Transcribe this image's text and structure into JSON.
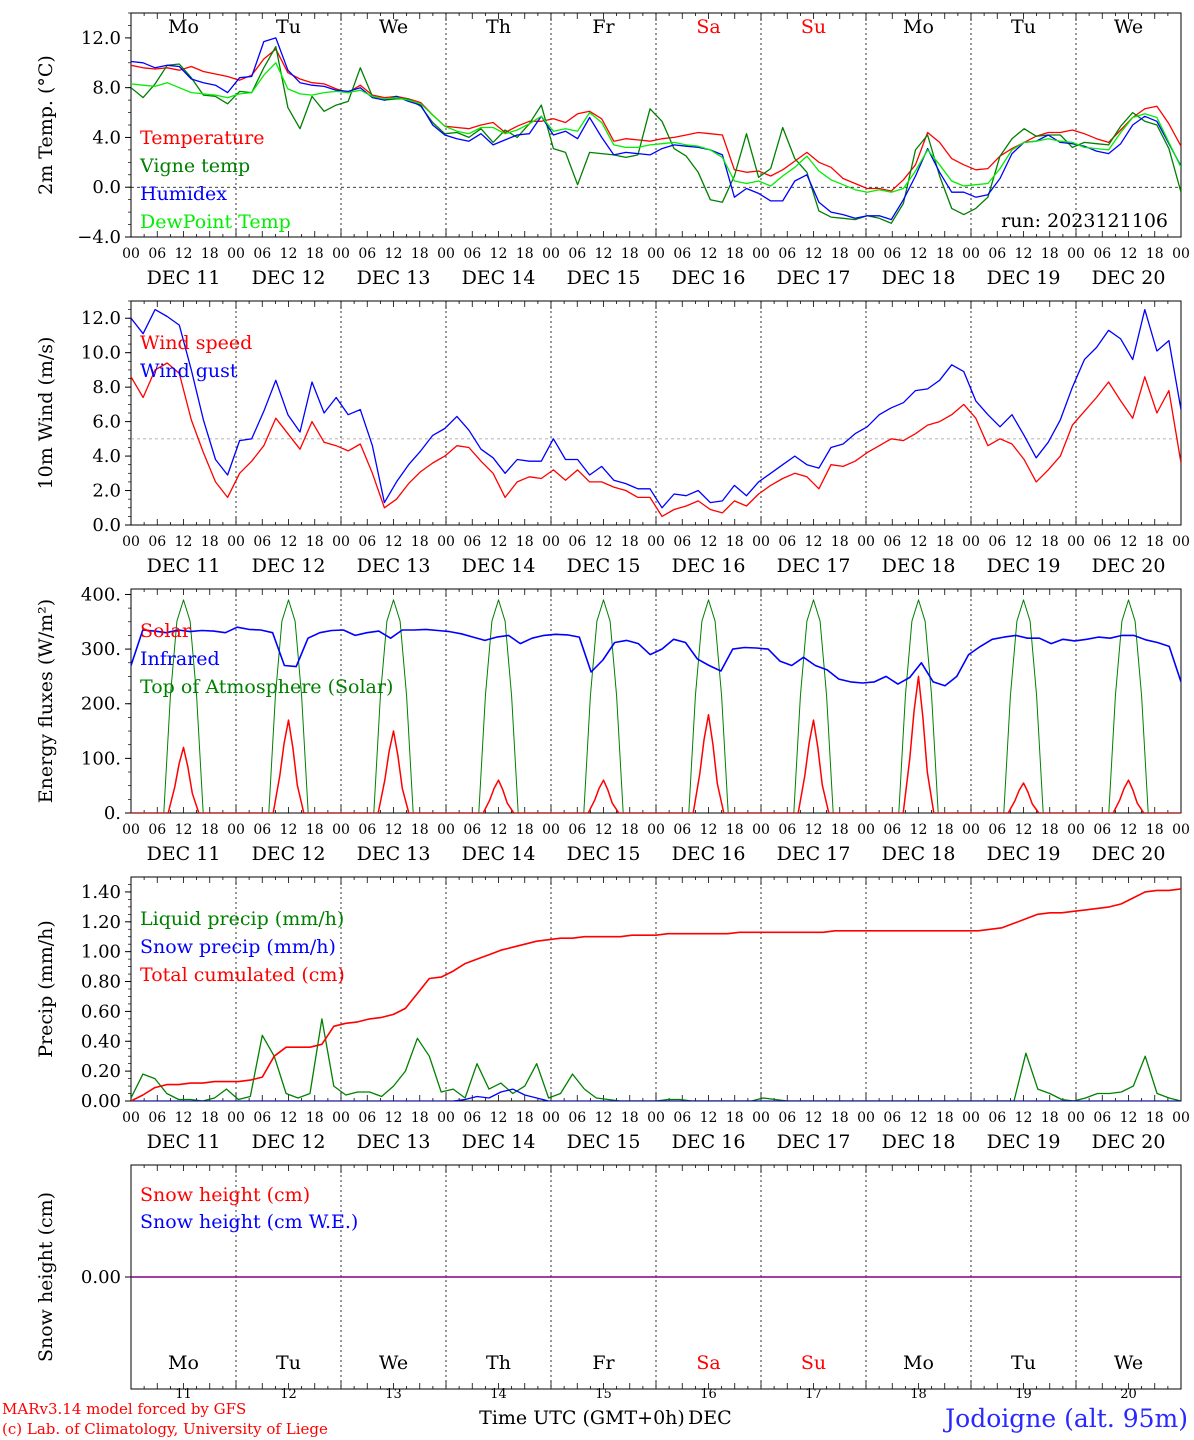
{
  "days": [
    "11",
    "12",
    "13",
    "14",
    "15",
    "16",
    "17",
    "18",
    "19",
    "20"
  ],
  "dayNames": [
    "Mo",
    "Tu",
    "We",
    "Th",
    "Fr",
    "Sa",
    "Su",
    "Mo",
    "Tu",
    "We"
  ],
  "dateLabels": [
    "DEC 11",
    "DEC 12",
    "DEC 13",
    "DEC 14",
    "DEC 15",
    "DEC 16",
    "DEC 17",
    "DEC 18",
    "DEC 19",
    "DEC 20"
  ],
  "hourLabels": [
    "00",
    "06",
    "12",
    "18"
  ],
  "finalHourLabel": "00",
  "colors": {
    "weekday": "#000000",
    "weekend": "#ff0000",
    "red": "#ff0000",
    "green": "#008000",
    "blue": "#0000ff",
    "lightgreen": "#00ee00",
    "purple": "#800080"
  },
  "footer": {
    "model": "MARv3.14 model forced by GFS",
    "credit": "(c) Lab. of Climatology, University of Liege",
    "xlabel": "Time UTC (GMT+0h)",
    "month": "DEC",
    "location": "Jodoigne (alt. 95m)"
  },
  "chart_data": [
    {
      "type": "line",
      "ylabel": "2m Temp. (°C)",
      "ylim": [
        -4,
        14
      ],
      "yticks": [
        "12.0",
        "8.0",
        "4.0",
        "0.0",
        "−4.0"
      ],
      "ytick_values": [
        12,
        8,
        4,
        0,
        -4
      ],
      "reference_line": 0,
      "annotation": "run: 2023121106",
      "x": "hours since DEC 11 00 UTC, 3-hourly 0..240",
      "series": [
        {
          "name": "Temperature",
          "color": "#ff0000",
          "values": [
            9.8,
            9.6,
            9.5,
            9.6,
            9.4,
            9.7,
            9.3,
            9.1,
            8.9,
            8.6,
            9.0,
            10.3,
            11.1,
            9.2,
            8.7,
            8.4,
            8.3,
            7.9,
            7.6,
            8.2,
            7.4,
            7.2,
            7.3,
            7.1,
            6.8,
            5.8,
            4.9,
            4.8,
            4.7,
            5.0,
            5.2,
            4.4,
            4.9,
            5.3,
            5.3,
            5.5,
            5.2,
            5.9,
            6.1,
            5.5,
            3.7,
            3.9,
            3.8,
            3.7,
            3.9,
            4.0,
            4.2,
            4.4,
            4.3,
            4.2,
            1.4,
            1.2,
            1.3,
            0.9,
            1.4,
            2.1,
            2.8,
            2.0,
            1.6,
            0.7,
            0.3,
            -0.1,
            -0.1,
            -0.3,
            0.6,
            1.8,
            4.4,
            3.6,
            2.3,
            1.8,
            1.4,
            1.5,
            2.5,
            3.1,
            3.6,
            4.1,
            4.4,
            4.4,
            4.6,
            4.3,
            3.9,
            3.6,
            4.6,
            5.6,
            6.3,
            6.5,
            5.1,
            3.3
          ]
        },
        {
          "name": "Vigne temp",
          "color": "#008000",
          "values": [
            8.0,
            7.2,
            8.3,
            9.8,
            9.9,
            8.8,
            7.4,
            7.3,
            6.7,
            7.7,
            7.6,
            9.6,
            11.3,
            6.4,
            4.7,
            7.3,
            6.1,
            6.6,
            6.9,
            9.6,
            7.3,
            7.0,
            7.1,
            7.1,
            6.5,
            5.2,
            4.3,
            4.4,
            4.0,
            4.7,
            3.6,
            4.6,
            4.0,
            5.1,
            6.6,
            3.1,
            2.8,
            0.2,
            2.8,
            2.7,
            2.6,
            2.4,
            2.6,
            6.3,
            5.3,
            3.1,
            2.5,
            1.2,
            -1.0,
            -1.2,
            0.9,
            4.3,
            0.8,
            1.5,
            4.8,
            2.3,
            1.2,
            -1.9,
            -2.4,
            -2.5,
            -2.6,
            -2.3,
            -2.5,
            -2.9,
            -1.3,
            3.0,
            4.2,
            0.9,
            -1.7,
            -2.2,
            -1.7,
            -0.8,
            2.5,
            3.9,
            4.7,
            4.1,
            4.2,
            4.2,
            3.2,
            3.6,
            3.5,
            3.4,
            4.9,
            6.0,
            5.3,
            5.0,
            3.1,
            -0.4
          ]
        },
        {
          "name": "Humidex",
          "color": "#0000ff",
          "values": [
            10.1,
            10.0,
            9.6,
            9.8,
            9.7,
            8.7,
            8.4,
            8.2,
            7.6,
            8.8,
            8.9,
            11.7,
            12.0,
            9.4,
            8.4,
            8.2,
            8.1,
            7.8,
            7.7,
            8.0,
            7.2,
            7.0,
            7.3,
            6.9,
            6.6,
            5.0,
            4.2,
            3.9,
            3.7,
            4.3,
            3.4,
            3.8,
            4.2,
            4.3,
            5.7,
            4.2,
            4.5,
            3.9,
            5.6,
            4.0,
            2.6,
            2.8,
            2.7,
            2.6,
            3.1,
            3.4,
            3.3,
            3.2,
            3.0,
            2.6,
            -0.8,
            -0.1,
            -0.5,
            -1.1,
            -1.1,
            0.5,
            1.0,
            -1.2,
            -2.0,
            -2.2,
            -2.5,
            -2.3,
            -2.3,
            -2.6,
            -1.0,
            0.9,
            3.1,
            1.2,
            -0.4,
            -0.4,
            -0.8,
            -0.6,
            0.7,
            2.7,
            3.6,
            3.7,
            4.2,
            3.6,
            3.5,
            3.3,
            2.9,
            2.7,
            3.5,
            5.0,
            5.7,
            5.3,
            3.5,
            1.7
          ]
        },
        {
          "name": "DewPoint Temp",
          "color": "#00ee00",
          "values": [
            8.3,
            8.2,
            8.1,
            8.4,
            8.0,
            7.6,
            7.5,
            7.4,
            7.2,
            7.5,
            7.6,
            9.0,
            10.0,
            7.9,
            7.5,
            7.4,
            7.6,
            7.7,
            7.6,
            7.8,
            7.3,
            7.1,
            7.2,
            7.0,
            6.7,
            5.8,
            4.9,
            4.5,
            4.3,
            4.8,
            4.8,
            4.3,
            4.6,
            5.1,
            5.7,
            4.5,
            4.7,
            4.5,
            6.0,
            5.2,
            3.4,
            3.2,
            3.2,
            3.4,
            3.5,
            3.6,
            3.4,
            3.3,
            3.0,
            2.4,
            0.5,
            0.3,
            0.5,
            0.1,
            0.9,
            1.6,
            2.5,
            1.3,
            0.6,
            0.2,
            -0.2,
            -0.4,
            -0.2,
            -0.4,
            -0.1,
            1.3,
            3.0,
            1.8,
            0.5,
            0.1,
            0.2,
            0.3,
            1.5,
            3.0,
            3.6,
            3.7,
            3.9,
            3.7,
            3.6,
            3.2,
            3.1,
            3.0,
            4.4,
            5.6,
            5.9,
            5.6,
            3.6,
            1.6
          ]
        }
      ]
    },
    {
      "type": "line",
      "ylabel": "10m Wind (m/s)",
      "ylim": [
        0,
        13
      ],
      "yticks": [
        "12.0",
        "10.0",
        "8.0",
        "6.0",
        "4.0",
        "2.0",
        "0.0"
      ],
      "ytick_values": [
        12,
        10,
        8,
        6,
        4,
        2,
        0
      ],
      "reference_line": 5,
      "series": [
        {
          "name": "Wind speed",
          "color": "#ff0000",
          "values": [
            8.6,
            7.4,
            9.0,
            9.4,
            8.8,
            6.1,
            4.2,
            2.5,
            1.6,
            3.0,
            3.7,
            4.6,
            6.2,
            5.3,
            4.4,
            6.0,
            4.8,
            4.6,
            4.3,
            4.7,
            3.0,
            1.0,
            1.5,
            2.4,
            3.1,
            3.6,
            4.0,
            4.6,
            4.5,
            3.7,
            3.0,
            1.6,
            2.5,
            2.8,
            2.7,
            3.2,
            2.6,
            3.2,
            2.5,
            2.5,
            2.2,
            2.0,
            1.6,
            1.6,
            0.5,
            0.9,
            1.1,
            1.4,
            0.9,
            0.7,
            1.4,
            1.1,
            1.8,
            2.3,
            2.7,
            3.0,
            2.8,
            2.1,
            3.5,
            3.4,
            3.7,
            4.2,
            4.6,
            5.0,
            4.9,
            5.3,
            5.8,
            6.0,
            6.4,
            7.0,
            6.2,
            4.6,
            5.0,
            4.7,
            3.8,
            2.5,
            3.2,
            4.0,
            5.8,
            6.6,
            7.4,
            8.3,
            7.2,
            6.2,
            8.6,
            6.5,
            7.8,
            3.6
          ]
        },
        {
          "name": "Wind gust",
          "color": "#0000ff",
          "values": [
            12.0,
            11.1,
            12.5,
            12.1,
            11.6,
            9.0,
            6.1,
            3.8,
            2.9,
            4.9,
            5.0,
            6.6,
            8.4,
            6.4,
            5.4,
            8.3,
            6.5,
            7.4,
            6.4,
            6.7,
            4.6,
            1.3,
            2.5,
            3.5,
            4.3,
            5.2,
            5.6,
            6.3,
            5.5,
            4.4,
            3.9,
            3.0,
            3.8,
            3.7,
            3.7,
            5.0,
            3.8,
            3.8,
            2.9,
            3.4,
            2.6,
            2.4,
            2.1,
            2.1,
            1.0,
            1.8,
            1.7,
            2.0,
            1.3,
            1.4,
            2.3,
            1.7,
            2.5,
            3.0,
            3.5,
            4.0,
            3.5,
            3.3,
            4.5,
            4.7,
            5.3,
            5.7,
            6.4,
            6.8,
            7.1,
            7.8,
            7.9,
            8.4,
            9.3,
            8.9,
            7.2,
            6.4,
            5.7,
            6.4,
            5.2,
            3.9,
            4.8,
            6.1,
            8.0,
            9.6,
            10.3,
            11.3,
            10.8,
            9.6,
            12.5,
            10.1,
            10.7,
            6.7
          ]
        }
      ]
    },
    {
      "type": "line",
      "ylabel": "Energy fluxes (W/m²)",
      "ylim": [
        0,
        410
      ],
      "yticks": [
        "400.",
        "300.",
        "200.",
        "100.",
        "0."
      ],
      "ytick_values": [
        400,
        300,
        200,
        100,
        0
      ],
      "series": [
        {
          "name": "Solar",
          "color": "#ff0000",
          "peaks": [
            120,
            170,
            150,
            60,
            60,
            180,
            170,
            250,
            55,
            60
          ]
        },
        {
          "name": "Infrared",
          "color": "#0000ff",
          "values": [
            270,
            335,
            333,
            330,
            335,
            332,
            334,
            333,
            330,
            340,
            336,
            335,
            330,
            270,
            268,
            320,
            330,
            334,
            335,
            325,
            330,
            333,
            320,
            335,
            335,
            336,
            334,
            332,
            328,
            322,
            316,
            322,
            325,
            310,
            320,
            325,
            327,
            326,
            322,
            258,
            280,
            312,
            316,
            310,
            290,
            300,
            318,
            312,
            282,
            270,
            260,
            300,
            303,
            302,
            300,
            278,
            270,
            285,
            270,
            262,
            245,
            240,
            238,
            240,
            250,
            236,
            248,
            275,
            240,
            233,
            250,
            290,
            305,
            318,
            322,
            325,
            320,
            320,
            310,
            318,
            315,
            318,
            322,
            320,
            325,
            325,
            317,
            312,
            305,
            240
          ]
        },
        {
          "name": "Top of Atmosphere (Solar)",
          "color": "#008000",
          "peak": 390
        }
      ]
    },
    {
      "type": "line",
      "ylabel": "Precip (mm/h)",
      "ylim": [
        0,
        1.5
      ],
      "yticks": [
        "1.40",
        "1.20",
        "1.00",
        "0.80",
        "0.60",
        "0.40",
        "0.20",
        "0.00"
      ],
      "ytick_values": [
        1.4,
        1.2,
        1.0,
        0.8,
        0.6,
        0.4,
        0.2,
        0.0
      ],
      "series": [
        {
          "name": "Liquid precip (mm/h)",
          "color": "#008000",
          "values": [
            0.02,
            0.18,
            0.15,
            0.05,
            0.01,
            0.01,
            0.0,
            0.02,
            0.08,
            0.01,
            0.03,
            0.44,
            0.3,
            0.05,
            0.02,
            0.05,
            0.55,
            0.1,
            0.04,
            0.06,
            0.06,
            0.03,
            0.1,
            0.2,
            0.42,
            0.3,
            0.06,
            0.08,
            0.02,
            0.25,
            0.08,
            0.12,
            0.05,
            0.1,
            0.25,
            0.02,
            0.05,
            0.18,
            0.08,
            0.02,
            0.01,
            0.0,
            0.0,
            0.0,
            0.0,
            0.01,
            0.01,
            0.0,
            0.0,
            0.0,
            0.0,
            0.0,
            0.0,
            0.02,
            0.01,
            0.0,
            0.0,
            0.0,
            0.0,
            0.0,
            0.0,
            0.0,
            0.0,
            0.0,
            0.0,
            0.0,
            0.0,
            0.0,
            0.0,
            0.0,
            0.0,
            0.0,
            0.0,
            0.0,
            0.0,
            0.32,
            0.08,
            0.05,
            0.01,
            0.0,
            0.02,
            0.05,
            0.05,
            0.06,
            0.1,
            0.3,
            0.05,
            0.02,
            0.0
          ]
        },
        {
          "name": "Snow precip (mm/h)",
          "color": "#0000ff",
          "values": [
            0,
            0,
            0,
            0,
            0,
            0,
            0,
            0,
            0,
            0,
            0,
            0,
            0,
            0,
            0,
            0,
            0,
            0,
            0,
            0,
            0,
            0,
            0,
            0,
            0,
            0,
            0,
            0,
            0.01,
            0.03,
            0.02,
            0.06,
            0.08,
            0.04,
            0.02,
            0.0,
            0,
            0,
            0,
            0,
            0,
            0,
            0,
            0,
            0,
            0,
            0,
            0,
            0,
            0,
            0,
            0,
            0,
            0,
            0,
            0,
            0,
            0,
            0,
            0,
            0,
            0,
            0,
            0,
            0,
            0,
            0,
            0,
            0,
            0,
            0,
            0,
            0,
            0,
            0,
            0,
            0,
            0,
            0,
            0,
            0,
            0,
            0,
            0,
            0,
            0,
            0,
            0,
            0
          ]
        },
        {
          "name": "Total cumulated (cm)",
          "color": "#ff0000",
          "values": [
            0.0,
            0.04,
            0.09,
            0.11,
            0.11,
            0.12,
            0.12,
            0.13,
            0.13,
            0.13,
            0.14,
            0.16,
            0.3,
            0.36,
            0.36,
            0.36,
            0.38,
            0.5,
            0.52,
            0.53,
            0.55,
            0.56,
            0.58,
            0.62,
            0.72,
            0.82,
            0.83,
            0.87,
            0.92,
            0.95,
            0.98,
            1.01,
            1.03,
            1.05,
            1.07,
            1.08,
            1.09,
            1.09,
            1.1,
            1.1,
            1.1,
            1.1,
            1.11,
            1.11,
            1.11,
            1.12,
            1.12,
            1.12,
            1.12,
            1.12,
            1.12,
            1.13,
            1.13,
            1.13,
            1.13,
            1.13,
            1.13,
            1.13,
            1.13,
            1.14,
            1.14,
            1.14,
            1.14,
            1.14,
            1.14,
            1.14,
            1.14,
            1.14,
            1.14,
            1.14,
            1.14,
            1.14,
            1.15,
            1.16,
            1.19,
            1.22,
            1.25,
            1.26,
            1.26,
            1.27,
            1.28,
            1.29,
            1.3,
            1.32,
            1.36,
            1.4,
            1.41,
            1.41,
            1.42
          ]
        }
      ]
    },
    {
      "type": "line",
      "ylabel": "Snow height (cm)",
      "ylim": [
        -1,
        1
      ],
      "yticks": [
        "0.00"
      ],
      "ytick_values": [
        0
      ],
      "series": [
        {
          "name": "Snow height (cm)",
          "color": "#ff0000",
          "values": [
            0,
            0
          ]
        },
        {
          "name": "Snow height (cm W.E.)",
          "color": "#0000ff",
          "values": [
            0,
            0
          ]
        }
      ]
    }
  ]
}
